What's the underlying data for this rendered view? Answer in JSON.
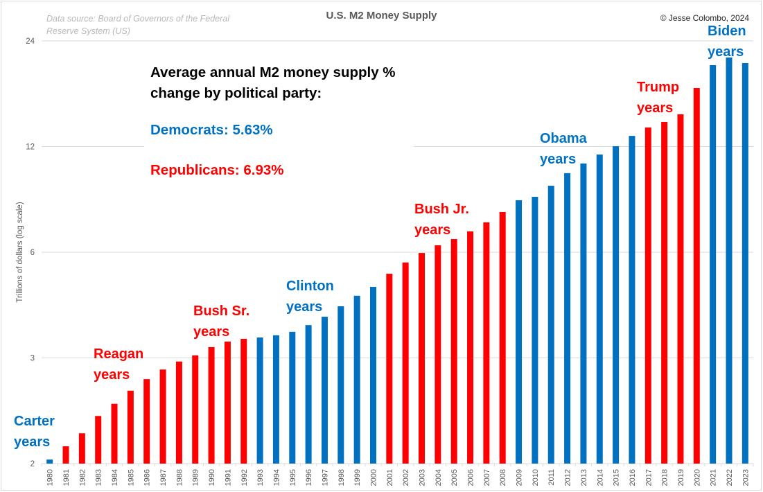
{
  "chart_data": {
    "type": "bar",
    "title": "U.S. M2 Money Supply",
    "source_note": "Data source: Board of Governors of the Federal Reserve System (US)",
    "copyright": "© Jesse Colombo, 2024",
    "ylabel": "Trillions of dollars (log scale)",
    "xlabel": "",
    "yscale": "log2",
    "ylim": [
      1.5,
      24
    ],
    "yticks": [
      {
        "value": 24,
        "label": "24"
      },
      {
        "value": 12,
        "label": "12"
      },
      {
        "value": 6,
        "label": "6"
      },
      {
        "value": 3,
        "label": "3"
      },
      {
        "value": 1.5,
        "label": "2"
      }
    ],
    "grid": true,
    "colors": {
      "Democrat": "#0070c0",
      "Republican": "#ff0000"
    },
    "categories": [
      "1980",
      "1981",
      "1982",
      "1983",
      "1984",
      "1985",
      "1986",
      "1987",
      "1988",
      "1989",
      "1990",
      "1991",
      "1992",
      "1993",
      "1994",
      "1995",
      "1996",
      "1997",
      "1998",
      "1999",
      "2000",
      "2001",
      "2002",
      "2003",
      "2004",
      "2005",
      "2006",
      "2007",
      "2008",
      "2009",
      "2010",
      "2011",
      "2012",
      "2013",
      "2014",
      "2015",
      "2016",
      "2017",
      "2018",
      "2019",
      "2020",
      "2021",
      "2022",
      "2023"
    ],
    "values": [
      1.54,
      1.68,
      1.83,
      2.05,
      2.22,
      2.42,
      2.61,
      2.78,
      2.93,
      3.05,
      3.22,
      3.34,
      3.4,
      3.43,
      3.48,
      3.56,
      3.72,
      3.93,
      4.21,
      4.51,
      4.78,
      5.21,
      5.61,
      5.97,
      6.28,
      6.54,
      6.88,
      7.3,
      7.81,
      8.44,
      8.63,
      9.28,
      10.08,
      10.74,
      11.39,
      12.03,
      12.87,
      13.6,
      14.1,
      14.83,
      17.62,
      20.47,
      21.52,
      20.75
    ],
    "party": [
      "D",
      "R",
      "R",
      "R",
      "R",
      "R",
      "R",
      "R",
      "R",
      "R",
      "R",
      "R",
      "R",
      "D",
      "D",
      "D",
      "D",
      "D",
      "D",
      "D",
      "D",
      "R",
      "R",
      "R",
      "R",
      "R",
      "R",
      "R",
      "R",
      "D",
      "D",
      "D",
      "D",
      "D",
      "D",
      "D",
      "D",
      "R",
      "R",
      "R",
      "R",
      "D",
      "D",
      "D"
    ],
    "annotations": {
      "heading": "Average annual M2 money supply % change by political party:",
      "democrats": "Democrats: 5.63%",
      "republicans": "Republicans: 6.93%"
    },
    "era_labels": [
      {
        "text": "Carter\nyears",
        "party": "D"
      },
      {
        "text": "Reagan\nyears",
        "party": "R"
      },
      {
        "text": "Bush Sr.\nyears",
        "party": "R"
      },
      {
        "text": "Clinton\nyears",
        "party": "D"
      },
      {
        "text": "Bush Jr.\nyears",
        "party": "R"
      },
      {
        "text": "Obama\nyears",
        "party": "D"
      },
      {
        "text": "Trump\nyears",
        "party": "R"
      },
      {
        "text": "Biden\nyears",
        "party": "D"
      }
    ]
  }
}
